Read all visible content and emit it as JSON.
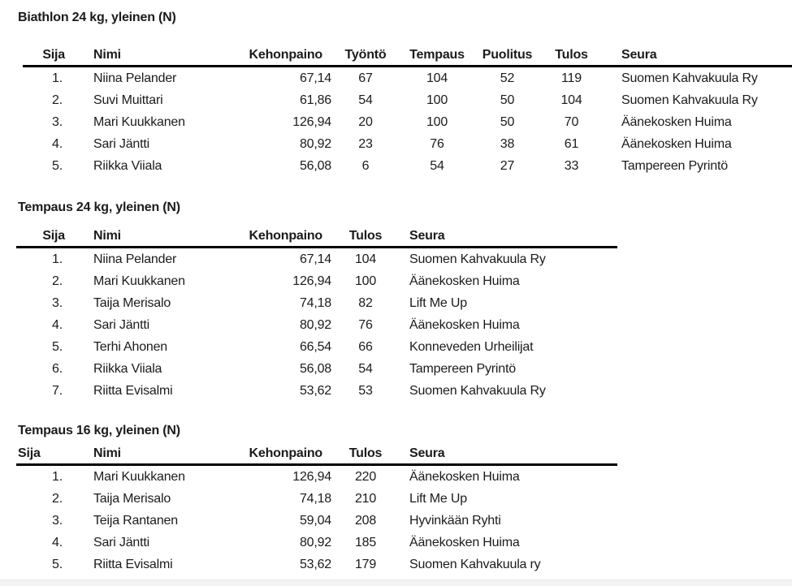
{
  "document": {
    "background": "#ffffff",
    "text_color": "#1b1b1b",
    "rule_color": "#000000"
  },
  "tables": [
    {
      "title": "Biathlon 24 kg, yleinen (N)",
      "columns": [
        {
          "key": "sija",
          "label": "Sija"
        },
        {
          "key": "nimi",
          "label": "Nimi"
        },
        {
          "key": "kehonpaino",
          "label": "Kehonpaino"
        },
        {
          "key": "tyonto",
          "label": "Työntö"
        },
        {
          "key": "tempaus",
          "label": "Tempaus"
        },
        {
          "key": "puolitus",
          "label": "Puolitus"
        },
        {
          "key": "tulos",
          "label": "Tulos"
        },
        {
          "key": "seura",
          "label": "Seura"
        }
      ],
      "rows": [
        [
          "1.",
          "Niina Pelander",
          "67,14",
          "67",
          "104",
          "52",
          "119",
          "Suomen Kahvakuula Ry"
        ],
        [
          "2.",
          "Suvi Muittari",
          "61,86",
          "54",
          "100",
          "50",
          "104",
          "Suomen Kahvakuula Ry"
        ],
        [
          "3.",
          "Mari Kuukkanen",
          "126,94",
          "20",
          "100",
          "50",
          "70",
          "Äänekosken Huima"
        ],
        [
          "4.",
          "Sari Jäntti",
          "80,92",
          "23",
          "76",
          "38",
          "61",
          "Äänekosken Huima"
        ],
        [
          "5.",
          "Riikka Viiala",
          "56,08",
          "6",
          "54",
          "27",
          "33",
          "Tampereen Pyrintö"
        ]
      ]
    },
    {
      "title": "Tempaus 24 kg, yleinen (N)",
      "columns": [
        {
          "key": "sija",
          "label": "Sija"
        },
        {
          "key": "nimi",
          "label": "Nimi"
        },
        {
          "key": "kehonpaino",
          "label": "Kehonpaino"
        },
        {
          "key": "tulos",
          "label": "Tulos"
        },
        {
          "key": "seura",
          "label": "Seura"
        }
      ],
      "rows": [
        [
          "1.",
          "Niina Pelander",
          "67,14",
          "104",
          "Suomen Kahvakuula Ry"
        ],
        [
          "2.",
          "Mari Kuukkanen",
          "126,94",
          "100",
          "Äänekosken Huima"
        ],
        [
          "3.",
          "Taija Merisalo",
          "74,18",
          "82",
          "Lift Me Up"
        ],
        [
          "4.",
          "Sari Jäntti",
          "80,92",
          "76",
          "Äänekosken Huima"
        ],
        [
          "5.",
          "Terhi Ahonen",
          "66,54",
          "66",
          "Konneveden Urheilijat"
        ],
        [
          "6.",
          "Riikka Viiala",
          "56,08",
          "54",
          "Tampereen Pyrintö"
        ],
        [
          "7.",
          "Riitta Evisalmi",
          "53,62",
          "53",
          "Suomen Kahvakuula Ry"
        ]
      ]
    },
    {
      "title": "Tempaus 16 kg, yleinen (N)",
      "columns": [
        {
          "key": "sija",
          "label": "Sija"
        },
        {
          "key": "nimi",
          "label": "Nimi"
        },
        {
          "key": "kehonpaino",
          "label": "Kehonpaino"
        },
        {
          "key": "tulos",
          "label": "Tulos"
        },
        {
          "key": "seura",
          "label": "Seura"
        }
      ],
      "rows": [
        [
          "1.",
          "Mari Kuukkanen",
          "126,94",
          "220",
          "Äänekosken Huima"
        ],
        [
          "2.",
          "Taija Merisalo",
          "74,18",
          "210",
          "Lift Me Up"
        ],
        [
          "3.",
          "Teija Rantanen",
          "59,04",
          "208",
          "Hyvinkään Ryhti"
        ],
        [
          "4.",
          "Sari Jäntti",
          "80,92",
          "185",
          "Äänekosken Huima"
        ],
        [
          "5.",
          "Riitta Evisalmi",
          "53,62",
          "179",
          "Suomen Kahvakuula ry"
        ]
      ]
    }
  ]
}
